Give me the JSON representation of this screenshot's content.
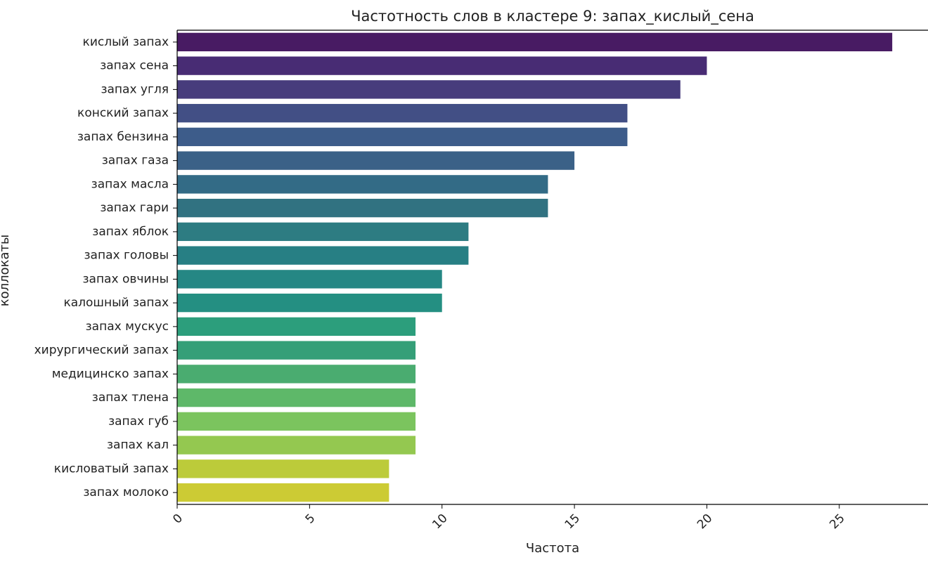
{
  "chart_data": {
    "type": "bar",
    "orientation": "horizontal",
    "title": "Частотность слов в кластере 9: запах_кислый_сена",
    "xlabel": "Частота",
    "ylabel": "коллокаты",
    "xlim": [
      0,
      28.35
    ],
    "xticks": [
      0,
      5,
      10,
      15,
      20,
      25
    ],
    "grid": false,
    "legend": "none",
    "colormap": "viridis",
    "categories": [
      "кислый запах",
      "запах сена",
      "запах угля",
      "конский запах",
      "запах бензина",
      "запах газа",
      "запах масла",
      "запах гари",
      "запах яблок",
      "запах головы",
      "запах овчины",
      "калошный запах",
      "запах мускус",
      "хирургический запах",
      "медицинско запах",
      "запах тлена",
      "запах губ",
      "запах кал",
      "кисловатый запах",
      "запах молоко"
    ],
    "values": [
      27,
      20,
      19,
      17,
      17,
      15,
      14,
      14,
      11,
      11,
      10,
      10,
      9,
      9,
      9,
      9,
      9,
      9,
      8,
      8
    ],
    "colors": [
      "#481B63",
      "#482C74",
      "#473C7C",
      "#424F85",
      "#3D5C8A",
      "#3B6187",
      "#336B86",
      "#317281",
      "#2D7C82",
      "#277F84",
      "#258784",
      "#248F82",
      "#2C9E7C",
      "#359F78",
      "#4AAC70",
      "#5EB869",
      "#7BC45E",
      "#94C850",
      "#BCCB3A",
      "#CCCB34"
    ]
  }
}
